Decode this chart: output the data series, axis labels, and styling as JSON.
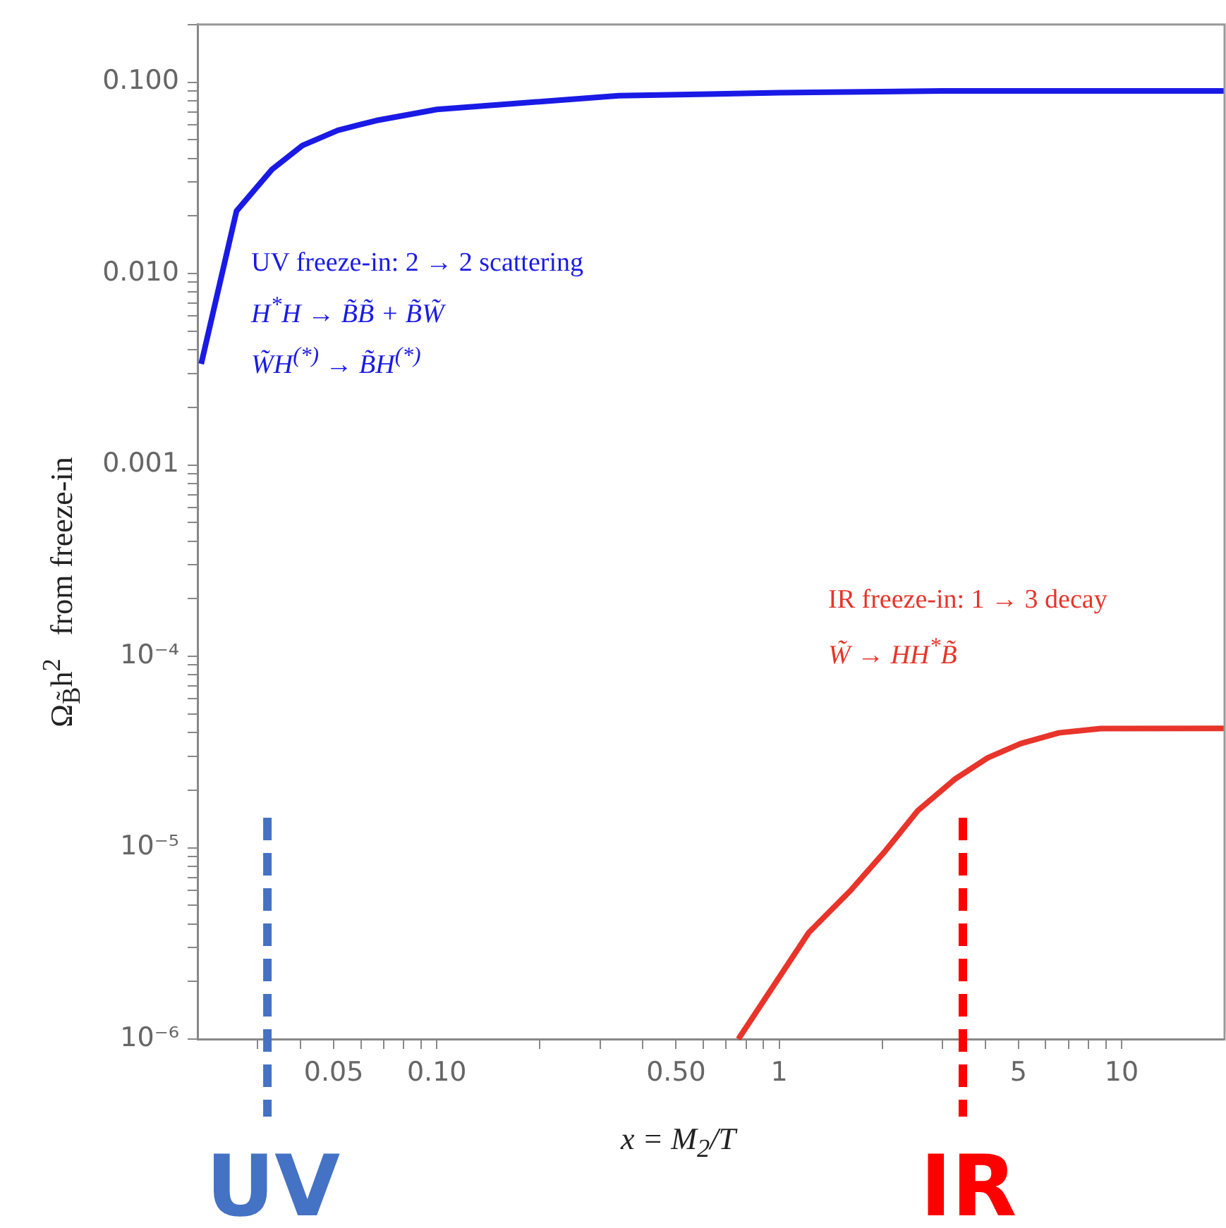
{
  "chart_data": {
    "type": "line",
    "xlabel": "x = M$_{2}$/T",
    "ylabel": "Ω$_{B̃}$h$^{2}$   from freeze-in",
    "log": "xy",
    "grid": false,
    "legend": false,
    "marker": "none",
    "line_style": "solid",
    "xlim": [
      0.02,
      20
    ],
    "xticks": [
      {
        "value": 0.03,
        "label": null
      },
      {
        "value": 0.04,
        "label": null
      },
      {
        "value": 0.05,
        "label": "0.05"
      },
      {
        "value": 0.06,
        "label": null
      },
      {
        "value": 0.07,
        "label": null
      },
      {
        "value": 0.08,
        "label": null
      },
      {
        "value": 0.09,
        "label": null
      },
      {
        "value": 0.1,
        "label": "0.10"
      },
      {
        "value": 0.2,
        "label": null
      },
      {
        "value": 0.3,
        "label": null
      },
      {
        "value": 0.4,
        "label": null
      },
      {
        "value": 0.5,
        "label": "0.50"
      },
      {
        "value": 0.6,
        "label": null
      },
      {
        "value": 0.7,
        "label": null
      },
      {
        "value": 0.8,
        "label": null
      },
      {
        "value": 0.9,
        "label": null
      },
      1,
      {
        "value": 2,
        "label": null
      },
      {
        "value": 3,
        "label": null
      },
      {
        "value": 4,
        "label": null
      },
      5,
      {
        "value": 6,
        "label": null
      },
      {
        "value": 7,
        "label": null
      },
      {
        "value": 8,
        "label": null
      },
      {
        "value": 9,
        "label": null
      },
      10
    ],
    "ylim": [
      1e-06,
      0.2
    ],
    "yticks": [
      {
        "value": 1e-06,
        "label": "10⁻⁶"
      },
      {
        "value": 2e-06,
        "label": null
      },
      {
        "value": 3e-06,
        "label": null
      },
      {
        "value": 4e-06,
        "label": null
      },
      {
        "value": 5e-06,
        "label": null
      },
      {
        "value": 6e-06,
        "label": null
      },
      {
        "value": 7e-06,
        "label": null
      },
      {
        "value": 8e-06,
        "label": null
      },
      {
        "value": 9e-06,
        "label": null
      },
      {
        "value": 1e-05,
        "label": "10⁻⁵"
      },
      {
        "value": 2e-05,
        "label": null
      },
      {
        "value": 3e-05,
        "label": null
      },
      {
        "value": 4e-05,
        "label": null
      },
      {
        "value": 5e-05,
        "label": null
      },
      {
        "value": 6e-05,
        "label": null
      },
      {
        "value": 7e-05,
        "label": null
      },
      {
        "value": 8e-05,
        "label": null
      },
      {
        "value": 9e-05,
        "label": null
      },
      {
        "value": 0.0001,
        "label": "10⁻⁴"
      },
      {
        "value": 0.0002,
        "label": null
      },
      {
        "value": 0.0003,
        "label": null
      },
      {
        "value": 0.0004,
        "label": null
      },
      {
        "value": 0.0005,
        "label": null
      },
      {
        "value": 0.0006,
        "label": null
      },
      {
        "value": 0.0007,
        "label": null
      },
      {
        "value": 0.0008,
        "label": null
      },
      {
        "value": 0.0009,
        "label": null
      },
      {
        "value": 0.001,
        "label": "0.001"
      },
      {
        "value": 0.002,
        "label": null
      },
      {
        "value": 0.003,
        "label": null
      },
      {
        "value": 0.004,
        "label": null
      },
      {
        "value": 0.005,
        "label": null
      },
      {
        "value": 0.006,
        "label": null
      },
      {
        "value": 0.007,
        "label": null
      },
      {
        "value": 0.008,
        "label": null
      },
      {
        "value": 0.009,
        "label": null
      },
      {
        "value": 0.01,
        "label": "0.010"
      },
      {
        "value": 0.02,
        "label": null
      },
      {
        "value": 0.03,
        "label": null
      },
      {
        "value": 0.04,
        "label": null
      },
      {
        "value": 0.05,
        "label": null
      },
      {
        "value": 0.06,
        "label": null
      },
      {
        "value": 0.07,
        "label": null
      },
      {
        "value": 0.08,
        "label": null
      },
      {
        "value": 0.09,
        "label": null
      },
      {
        "value": 0.1,
        "label": "0.100"
      },
      {
        "value": 0.2,
        "label": null
      }
    ],
    "series": [
      {
        "name": "UV freeze-in: 2 → 2 scattering",
        "color": "#1a1ae6",
        "x": [
          0.0205,
          0.026,
          0.033,
          0.0405,
          0.0514,
          0.0665,
          0.1,
          0.34,
          1,
          3,
          20
        ],
        "values": [
          0.00337,
          0.0212,
          0.035,
          0.0467,
          0.056,
          0.063,
          0.072,
          0.085,
          0.088,
          0.09,
          0.09
        ]
      },
      {
        "name": "IR freeze-in: 1 → 3 decay",
        "color": "#e8342a",
        "x": [
          0.76,
          1.22,
          1.62,
          2.04,
          2.54,
          3.27,
          4.07,
          5.07,
          6.56,
          8.7,
          20
        ],
        "values": [
          1e-06,
          3.6e-06,
          6e-06,
          9.6e-06,
          1.56e-05,
          2.29e-05,
          2.95e-05,
          3.5e-05,
          3.98e-05,
          4.19e-05,
          4.2e-05
        ]
      }
    ],
    "annotations": [
      "H$^{*}$H → B̃B̃ + B̃W̃",
      "W̃H$^{(*)}$ → B̃H$^{(*)}$",
      "W̃ → HH$^{*}$B̃"
    ],
    "ref_lines": [
      {
        "axis": "x",
        "value": 0.032,
        "label": "UV",
        "color": "#4472c4",
        "line_style": "dashed"
      },
      {
        "axis": "x",
        "value": 3.44,
        "label": "IR",
        "color": "#ff0000",
        "line_style": "dashed"
      }
    ]
  }
}
